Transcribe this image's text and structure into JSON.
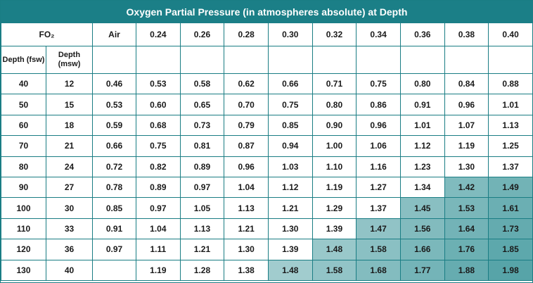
{
  "title": "Oxygen Partial Pressure (in atmospheres absolute) at Depth",
  "header": {
    "fo2": "FO₂",
    "columns": [
      "Air",
      "0.24",
      "0.26",
      "0.28",
      "0.30",
      "0.32",
      "0.34",
      "0.36",
      "0.38",
      "0.40"
    ],
    "depth_fsw": "Depth (fsw)",
    "depth_msw": "Depth (msw)"
  },
  "table": {
    "rows": [
      [
        "40",
        "12",
        "0.46",
        "0.53",
        "0.58",
        "0.62",
        "0.66",
        "0.71",
        "0.75",
        "0.80",
        "0.84",
        "0.88"
      ],
      [
        "50",
        "15",
        "0.53",
        "0.60",
        "0.65",
        "0.70",
        "0.75",
        "0.80",
        "0.86",
        "0.91",
        "0.96",
        "1.01"
      ],
      [
        "60",
        "18",
        "0.59",
        "0.68",
        "0.73",
        "0.79",
        "0.85",
        "0.90",
        "0.96",
        "1.01",
        "1.07",
        "1.13"
      ],
      [
        "70",
        "21",
        "0.66",
        "0.75",
        "0.81",
        "0.87",
        "0.94",
        "1.00",
        "1.06",
        "1.12",
        "1.19",
        "1.25"
      ],
      [
        "80",
        "24",
        "0.72",
        "0.82",
        "0.89",
        "0.96",
        "1.03",
        "1.10",
        "1.16",
        "1.23",
        "1.30",
        "1.37"
      ],
      [
        "90",
        "27",
        "0.78",
        "0.89",
        "0.97",
        "1.04",
        "1.12",
        "1.19",
        "1.27",
        "1.34",
        "1.42",
        "1.49"
      ],
      [
        "100",
        "30",
        "0.85",
        "0.97",
        "1.05",
        "1.13",
        "1.21",
        "1.29",
        "1.37",
        "1.45",
        "1.53",
        "1.61"
      ],
      [
        "110",
        "33",
        "0.91",
        "1.04",
        "1.13",
        "1.21",
        "1.30",
        "1.39",
        "1.47",
        "1.56",
        "1.64",
        "1.73"
      ],
      [
        "120",
        "36",
        "0.97",
        "1.11",
        "1.21",
        "1.30",
        "1.39",
        "1.48",
        "1.58",
        "1.66",
        "1.76",
        "1.85"
      ],
      [
        "130",
        "40",
        null,
        "1.19",
        "1.28",
        "1.38",
        "1.48",
        "1.58",
        "1.68",
        "1.77",
        "1.88",
        "1.98"
      ]
    ]
  }
}
